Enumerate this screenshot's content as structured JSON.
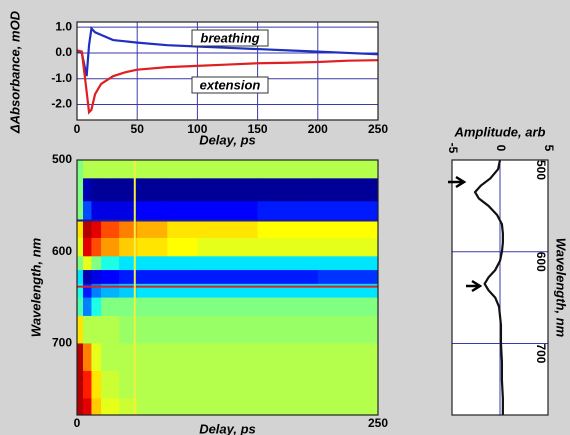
{
  "chart_data": [
    {
      "type": "line",
      "xlabel": "Delay, ps",
      "ylabel": "ΔAbsorbance, mOD",
      "x": [
        0,
        4,
        8,
        10,
        12,
        15,
        20,
        30,
        40,
        50,
        75,
        100,
        125,
        150,
        175,
        200,
        225,
        250
      ],
      "series": [
        {
          "name": "breathing",
          "color": "#1f2fbf",
          "values": [
            0.05,
            0.0,
            -0.9,
            0.3,
            0.95,
            0.8,
            0.7,
            0.5,
            0.45,
            0.4,
            0.3,
            0.25,
            0.2,
            0.15,
            0.1,
            0.05,
            0.0,
            -0.05
          ]
        },
        {
          "name": "extension",
          "color": "#e02020",
          "values": [
            0.1,
            0.05,
            -1.5,
            -2.3,
            -2.2,
            -1.6,
            -1.2,
            -0.9,
            -0.75,
            -0.65,
            -0.55,
            -0.5,
            -0.45,
            -0.4,
            -0.38,
            -0.35,
            -0.3,
            -0.28
          ]
        }
      ],
      "xlim": [
        0,
        250
      ],
      "xticks": [
        0,
        50,
        100,
        150,
        200,
        250
      ],
      "ylim": [
        -2.6,
        1.2
      ],
      "yticks": [
        {
          "value": 1,
          "label": "1.0"
        },
        {
          "value": 0,
          "label": "0.0"
        },
        {
          "value": -1,
          "label": "-1.0"
        },
        {
          "value": -2,
          "label": "-2.0"
        }
      ],
      "grid": true
    },
    {
      "type": "heatmap",
      "xlabel": "Delay, ps",
      "ylabel": "Wavelength, nm",
      "colormap": "jet",
      "zlim": [
        -1,
        1
      ],
      "x_bins": [
        0,
        5,
        12,
        20,
        35,
        50,
        75,
        100,
        150,
        200,
        250
      ],
      "y_bins": [
        500,
        520,
        545,
        565,
        585,
        605,
        620,
        635,
        650,
        670,
        700,
        730,
        760,
        778
      ],
      "z": [
        [
          0,
          0.1,
          0.1,
          0.1,
          0.1,
          0.1,
          0.1,
          0.1,
          0.1,
          0.1
        ],
        [
          0,
          -0.9,
          -0.95,
          -0.95,
          -0.95,
          -0.95,
          -0.95,
          -0.95,
          -0.95,
          -0.95
        ],
        [
          0,
          -0.6,
          -0.8,
          -0.8,
          -0.8,
          -0.75,
          -0.75,
          -0.75,
          -0.7,
          -0.7
        ],
        [
          0.3,
          0.9,
          0.8,
          0.6,
          0.5,
          0.4,
          0.3,
          0.3,
          0.25,
          0.25
        ],
        [
          0.2,
          0.8,
          0.6,
          0.45,
          0.35,
          0.3,
          0.25,
          0.2,
          0.2,
          0.2
        ],
        [
          0,
          0.2,
          0,
          -0.2,
          -0.3,
          -0.3,
          -0.3,
          -0.3,
          -0.3,
          -0.3
        ],
        [
          -0.3,
          -0.9,
          -0.8,
          -0.75,
          -0.7,
          -0.7,
          -0.7,
          -0.7,
          -0.7,
          -0.65
        ],
        [
          -0.2,
          -0.7,
          -0.5,
          -0.4,
          -0.35,
          -0.3,
          -0.3,
          -0.3,
          -0.3,
          -0.3
        ],
        [
          -0.1,
          -0.5,
          -0.2,
          0,
          0,
          0,
          0,
          0,
          0,
          0
        ],
        [
          0.3,
          0.1,
          0.1,
          0.1,
          0.05,
          0.05,
          0.05,
          0.05,
          0.05,
          0.05
        ],
        [
          0.9,
          0.5,
          0.2,
          0.1,
          0.1,
          0.1,
          0.1,
          0.1,
          0.1,
          0.1
        ],
        [
          0.9,
          0.7,
          0.3,
          0.15,
          0.1,
          0.1,
          0.1,
          0.1,
          0.1,
          0.1
        ],
        [
          0.9,
          0.8,
          0.35,
          0.2,
          0.15,
          0.1,
          0.1,
          0.1,
          0.1,
          0.1
        ]
      ],
      "lines": [
        {
          "orient": "h",
          "value": 566,
          "color": "#1a1aa0"
        },
        {
          "orient": "h",
          "value": 638,
          "color": "#e02020"
        },
        {
          "orient": "v",
          "value": 48,
          "color": "#f0f040"
        }
      ],
      "xlim": [
        0,
        250
      ],
      "xticks": [
        0,
        250
      ],
      "ylim": [
        500,
        778
      ],
      "yticks": [
        500,
        600,
        700
      ]
    },
    {
      "type": "line",
      "orientation": "vertical",
      "xlabel": "Amplitude, arb",
      "ylabel": "Wavelength, nm",
      "color": "#111111",
      "y": [
        500,
        510,
        520,
        528,
        535,
        542,
        550,
        560,
        570,
        580,
        590,
        600,
        610,
        620,
        628,
        635,
        642,
        650,
        660,
        680,
        700,
        720,
        740,
        760,
        778
      ],
      "values": [
        0,
        -0.2,
        -1.0,
        -2.0,
        -2.6,
        -2.2,
        -1.2,
        -0.3,
        0.2,
        0.3,
        0.3,
        0.2,
        0,
        -0.5,
        -1.2,
        -1.6,
        -1.2,
        -0.5,
        -0.1,
        0.1,
        0.1,
        0.2,
        0.2,
        0.3,
        0.3
      ],
      "xlim": [
        -5,
        5
      ],
      "xticks": [
        -5,
        0,
        5
      ],
      "ylim": [
        500,
        778
      ],
      "yticks": [
        500,
        600,
        700
      ],
      "grid": true
    }
  ]
}
